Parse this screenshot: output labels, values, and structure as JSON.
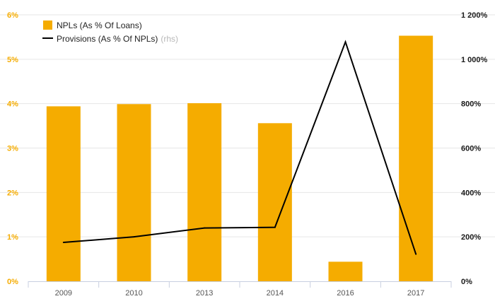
{
  "chart_data": {
    "type": "bar",
    "categories": [
      "2009",
      "2010",
      "2013",
      "2014",
      "2016",
      "2017"
    ],
    "series": [
      {
        "name": "NPLs (As % Of Loans)",
        "type": "bar",
        "axis": "left",
        "unit": "%",
        "values": [
          3.94,
          3.99,
          4.01,
          3.56,
          0.44,
          5.53
        ]
      },
      {
        "name": "Provisions (As % Of NPLs)",
        "legend_note": "(rhs)",
        "type": "line",
        "axis": "right",
        "unit": "%",
        "values": [
          175,
          200,
          240,
          243,
          1078,
          122
        ]
      }
    ],
    "y_left": {
      "ylim": [
        0,
        6
      ],
      "ticks": [
        "0%",
        "1%",
        "2%",
        "3%",
        "4%",
        "5%",
        "6%"
      ]
    },
    "y_right": {
      "ylim": [
        0,
        1200
      ],
      "ticks": [
        "0%",
        "200%",
        "400%",
        "600%",
        "800%",
        "1 000%",
        "1 200%"
      ]
    },
    "grid": true,
    "legend_position": "top-left",
    "colors": {
      "bar": "#f5ac00",
      "line": "#000000",
      "left_tick": "#f5ac00",
      "grid": "#e6e6e6",
      "axis": "#c8cfe0"
    }
  }
}
